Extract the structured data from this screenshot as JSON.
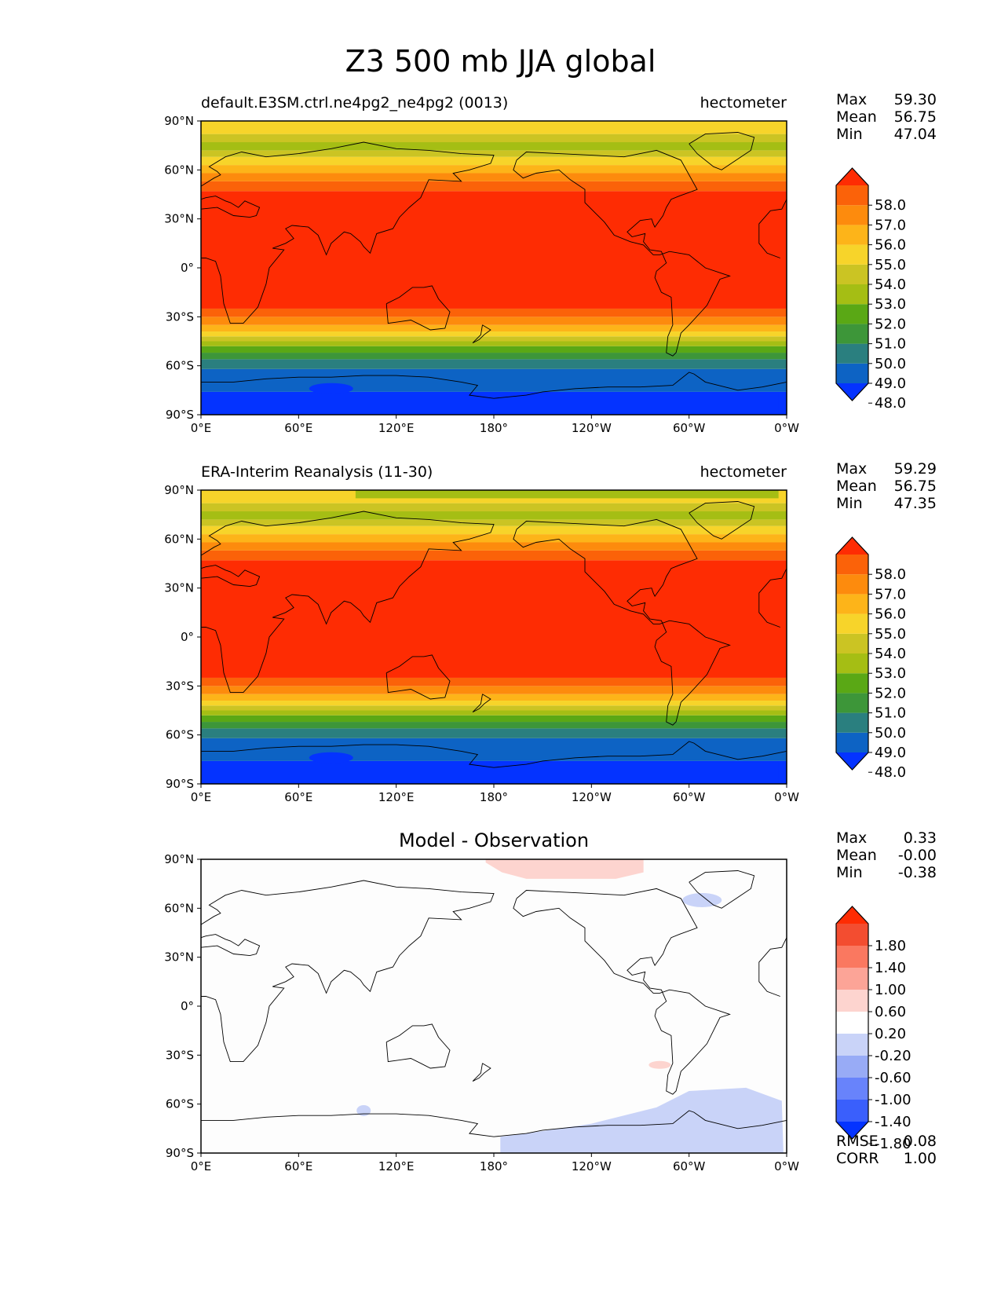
{
  "title": "Z3 500 mb JJA global",
  "lat_ticks": [
    "90°N",
    "60°N",
    "30°N",
    "0°",
    "30°S",
    "60°S",
    "90°S"
  ],
  "lon_ticks": [
    "0°E",
    "60°E",
    "120°E",
    "180°",
    "120°W",
    "60°W",
    "0°W"
  ],
  "panels": [
    {
      "title_left": "default.E3SM.ctrl.ne4pg2_ne4pg2 (0013)",
      "title_right": "hectometer",
      "stats": [
        {
          "label": "Max",
          "value": "59.30"
        },
        {
          "label": "Mean",
          "value": "56.75"
        },
        {
          "label": "Min",
          "value": "47.04"
        }
      ],
      "colorbar_labels": [
        "58.0",
        "57.0",
        "56.0",
        "55.0",
        "54.0",
        "53.0",
        "52.0",
        "51.0",
        "50.0",
        "49.0",
        "48.0"
      ]
    },
    {
      "title_left": "ERA-Interim Reanalysis (11-30)",
      "title_right": "hectometer",
      "stats": [
        {
          "label": "Max",
          "value": "59.29"
        },
        {
          "label": "Mean",
          "value": "56.75"
        },
        {
          "label": "Min",
          "value": "47.35"
        }
      ],
      "colorbar_labels": [
        "58.0",
        "57.0",
        "56.0",
        "55.0",
        "54.0",
        "53.0",
        "52.0",
        "51.0",
        "50.0",
        "49.0",
        "48.0"
      ]
    },
    {
      "title_center": "Model - Observation",
      "stats": [
        {
          "label": "Max",
          "value": "0.33"
        },
        {
          "label": "Mean",
          "value": "-0.00"
        },
        {
          "label": "Min",
          "value": "-0.38"
        }
      ],
      "colorbar_labels": [
        "1.80",
        "1.40",
        "1.00",
        "0.60",
        "0.20",
        "-0.20",
        "-0.60",
        "-1.00",
        "-1.40",
        "-1.80"
      ],
      "extra_stats": [
        {
          "label": "RMSE",
          "value": "0.08"
        },
        {
          "label": "CORR",
          "value": "1.00"
        }
      ]
    }
  ],
  "field_colors": [
    "#0433ff",
    "#0d63c4",
    "#2a7f7f",
    "#3d9639",
    "#5aa815",
    "#a5be14",
    "#cbc423",
    "#f7d42a",
    "#fdb419",
    "#fd8b0d",
    "#fb6209",
    "#fe2c03"
  ],
  "diff_colors": [
    "#0433ff",
    "#3a5ffc",
    "#6883fb",
    "#98abf6",
    "#c9d3f8",
    "#ffffff",
    "#fdd4cf",
    "#fca497",
    "#fa7860",
    "#f34d30",
    "#fe2c03"
  ],
  "land_color": "#000000"
}
